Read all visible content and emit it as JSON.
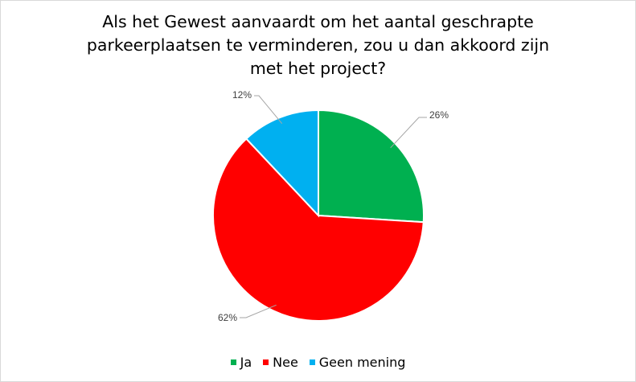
{
  "chart_data": {
    "type": "pie",
    "title": "Als het Gewest aanvaardt om het aantal geschrapte\nparkeerplaatsen te verminderen, zou u dan akkoord zijn\nmet het project?",
    "categories": [
      "Ja",
      "Nee",
      "Geen mening"
    ],
    "values": [
      26,
      62,
      12
    ],
    "data_labels": [
      "26%",
      "62%",
      "12%"
    ],
    "colors": [
      "#00b050",
      "#ff0000",
      "#00b0f0"
    ],
    "legend_position": "bottom"
  }
}
